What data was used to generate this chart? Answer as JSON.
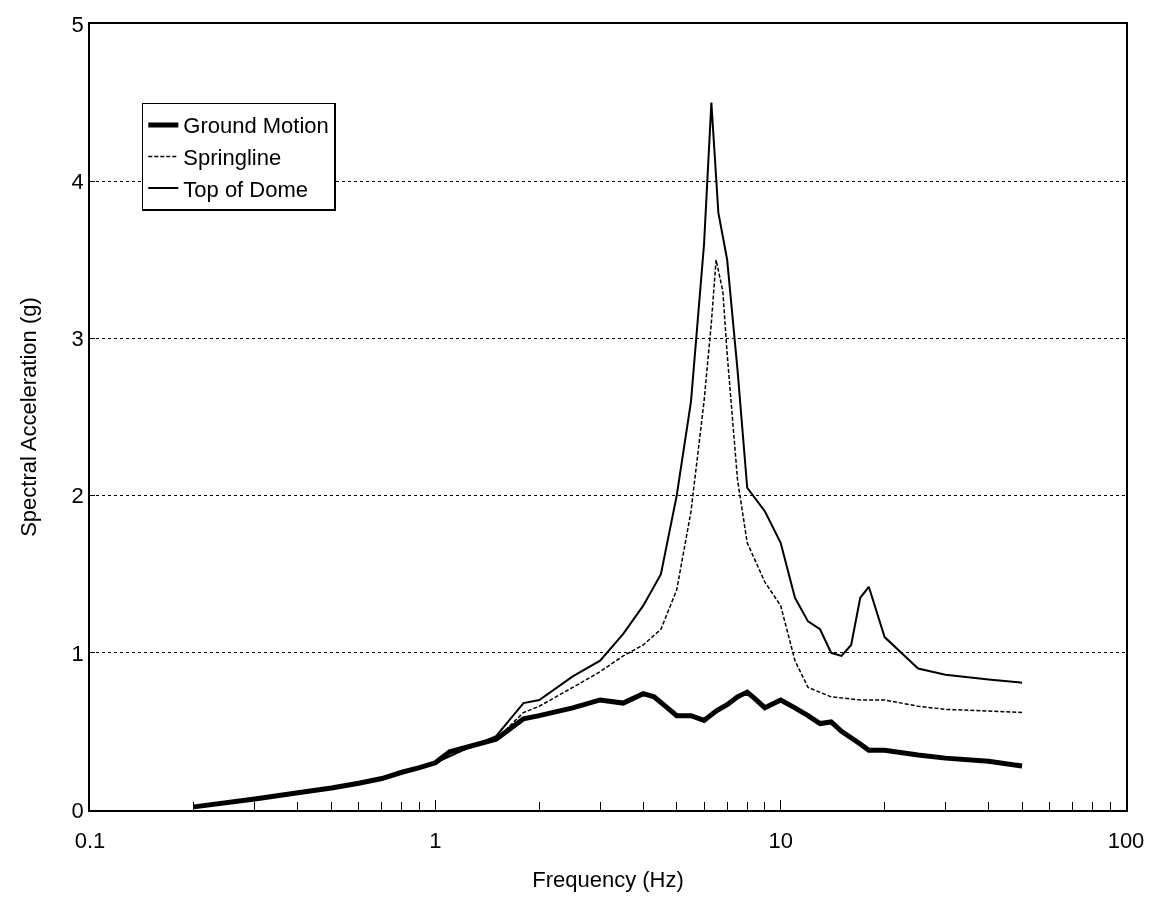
{
  "chart_data": {
    "type": "line",
    "xlabel": "Frequency (Hz)",
    "ylabel": "Spectral Acceleration (g)",
    "log": "x",
    "xlim": [
      0.1,
      100
    ],
    "xticks": [
      0.1,
      1,
      10,
      100
    ],
    "ylim": [
      0,
      5
    ],
    "yticks": [
      0,
      1,
      2,
      3,
      4,
      5
    ],
    "grid": "y",
    "legend": "top left",
    "marker": "none",
    "series": [
      {
        "name": "Ground Motion",
        "color": "#000000",
        "line_style": "solid",
        "x": [
          0.2,
          0.3,
          0.4,
          0.5,
          0.6,
          0.7,
          0.8,
          0.9,
          1.0,
          1.1,
          1.5,
          1.8,
          2,
          2.5,
          3,
          3.5,
          4,
          4.3,
          4.7,
          5,
          5.5,
          6,
          6.5,
          7,
          7.5,
          8,
          8.5,
          9,
          10,
          11,
          12,
          13,
          14,
          15,
          17,
          18,
          20,
          25,
          30,
          40,
          50
        ],
        "values": [
          0.02,
          0.07,
          0.11,
          0.14,
          0.17,
          0.2,
          0.24,
          0.27,
          0.3,
          0.37,
          0.45,
          0.58,
          0.6,
          0.65,
          0.7,
          0.68,
          0.74,
          0.72,
          0.65,
          0.6,
          0.6,
          0.57,
          0.63,
          0.67,
          0.72,
          0.75,
          0.7,
          0.65,
          0.7,
          0.65,
          0.6,
          0.55,
          0.56,
          0.5,
          0.42,
          0.38,
          0.38,
          0.35,
          0.33,
          0.31,
          0.28
        ]
      },
      {
        "name": "Springline",
        "color": "#000000",
        "line_style": "dashed",
        "x": [
          0.2,
          0.3,
          0.5,
          0.7,
          1.0,
          1.2,
          1.5,
          1.8,
          2,
          2.5,
          3,
          3.5,
          4,
          4.5,
          5,
          5.5,
          6,
          6.3,
          6.5,
          6.8,
          7,
          7.5,
          8,
          9,
          10,
          11,
          12,
          14,
          17,
          20,
          25,
          30,
          40,
          50
        ],
        "values": [
          0.02,
          0.07,
          0.14,
          0.2,
          0.3,
          0.38,
          0.45,
          0.62,
          0.66,
          0.78,
          0.88,
          0.98,
          1.05,
          1.15,
          1.4,
          1.9,
          2.6,
          3.1,
          3.5,
          3.3,
          2.9,
          2.1,
          1.7,
          1.45,
          1.3,
          0.95,
          0.78,
          0.72,
          0.7,
          0.7,
          0.66,
          0.64,
          0.63,
          0.62
        ]
      },
      {
        "name": "Top of Dome",
        "color": "#000000",
        "line_style": "solid",
        "x": [
          0.2,
          0.3,
          0.5,
          0.7,
          1.0,
          1.2,
          1.5,
          1.8,
          2,
          2.5,
          3,
          3.5,
          4,
          4.5,
          5,
          5.5,
          6,
          6.3,
          6.6,
          7,
          7.5,
          8,
          9,
          10,
          11,
          12,
          13,
          14,
          15,
          16,
          17,
          18,
          20,
          25,
          30,
          40,
          50
        ],
        "values": [
          0.02,
          0.07,
          0.14,
          0.2,
          0.3,
          0.38,
          0.47,
          0.68,
          0.7,
          0.85,
          0.95,
          1.12,
          1.3,
          1.5,
          2.0,
          2.6,
          3.6,
          4.5,
          3.8,
          3.5,
          2.8,
          2.05,
          1.9,
          1.7,
          1.35,
          1.2,
          1.15,
          1.0,
          0.98,
          1.05,
          1.35,
          1.42,
          1.1,
          0.9,
          0.86,
          0.83,
          0.81
        ]
      }
    ]
  }
}
